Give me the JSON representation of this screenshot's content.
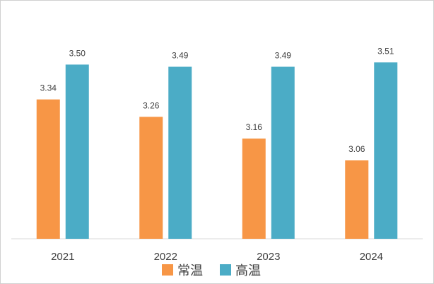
{
  "chart_data": {
    "type": "bar",
    "categories": [
      "2021",
      "2022",
      "2023",
      "2024"
    ],
    "series": [
      {
        "name": "常温",
        "color": "#F79646",
        "values": [
          3.34,
          3.26,
          3.16,
          3.06
        ]
      },
      {
        "name": "高温",
        "color": "#4BACC6",
        "values": [
          3.5,
          3.49,
          3.49,
          3.51
        ]
      }
    ],
    "title": "",
    "xlabel": "",
    "ylabel": "",
    "ylim": [
      2.7,
      3.55
    ],
    "grid": false,
    "legend": "bottom"
  }
}
